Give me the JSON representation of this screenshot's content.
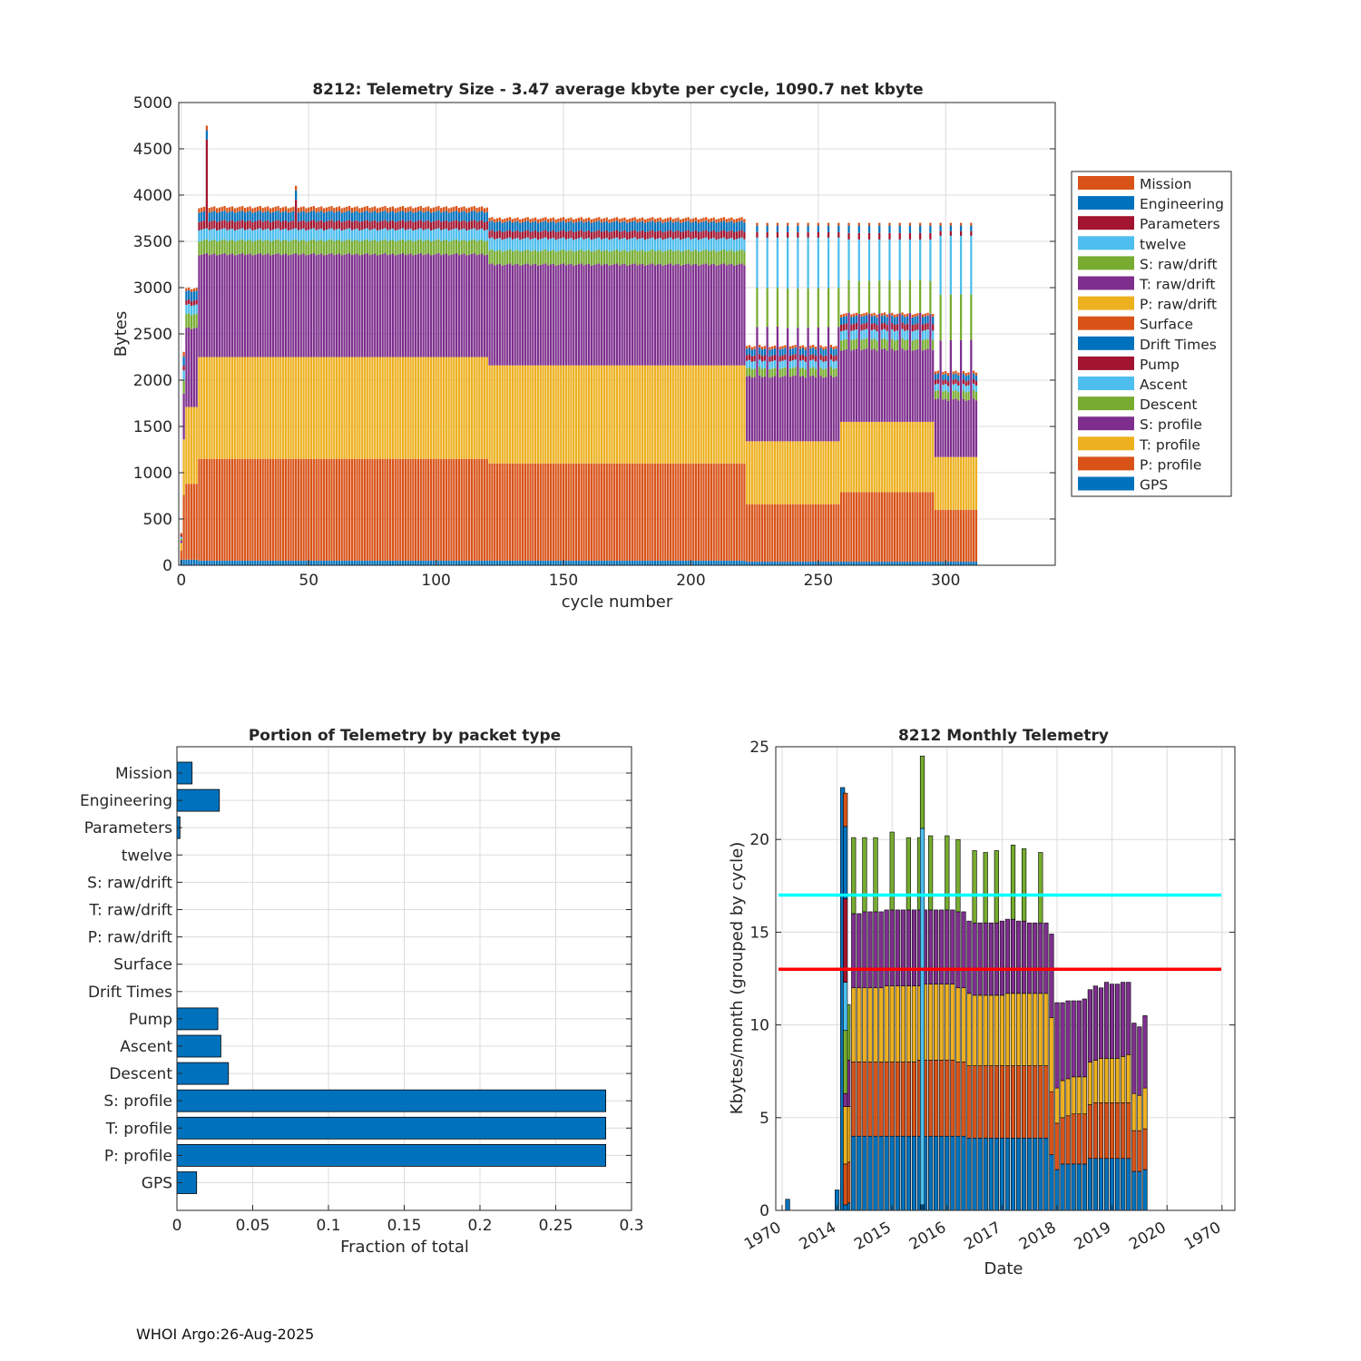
{
  "footer": "WHOI Argo:26-Aug-2025",
  "colors": {
    "blue": "#0072BD",
    "orange": "#D95319",
    "yellow": "#EDB120",
    "purple": "#7E2F8E",
    "green": "#77AC30",
    "cyan": "#4DBEEE",
    "red": "#A2142F",
    "line_cyan": "#00FFFF",
    "line_red": "#FF0000",
    "grid": "#dcdcdc"
  },
  "chart_data": [
    {
      "id": "telemetry-size",
      "type": "bar",
      "stacked": true,
      "title": "8212: Telemetry Size - 3.47 average kbyte per cycle, 1090.7 net kbyte",
      "xlabel": "cycle number",
      "ylabel": "Bytes",
      "xlim": [
        -1,
        343
      ],
      "ylim": [
        0,
        5000
      ],
      "xticks": [
        0,
        50,
        100,
        150,
        200,
        250,
        300
      ],
      "yticks": [
        0,
        500,
        1000,
        1500,
        2000,
        2500,
        3000,
        3500,
        4000,
        4500,
        5000
      ],
      "legend": [
        "Mission",
        "Engineering",
        "Parameters",
        "twelve",
        "S: raw/drift",
        "T: raw/drift",
        "P: raw/drift",
        "Surface",
        "Drift Times",
        "Pump",
        "Ascent",
        "Descent",
        "S: profile",
        "T: profile",
        "P: profile",
        "GPS"
      ],
      "legend_colors": [
        "orange",
        "blue",
        "red",
        "cyan",
        "green",
        "purple",
        "yellow",
        "orange",
        "blue",
        "red",
        "cyan",
        "green",
        "purple",
        "yellow",
        "orange",
        "blue"
      ],
      "legend_position": "outside-right",
      "stack_order": [
        "GPS",
        "P: profile",
        "T: profile",
        "S: profile",
        "Descent",
        "Ascent",
        "Pump",
        "Engineering",
        "Mission"
      ],
      "stack_colors": [
        "blue",
        "orange",
        "yellow",
        "purple",
        "green",
        "cyan",
        "red",
        "blue",
        "orange"
      ],
      "regimes": [
        {
          "from": 0,
          "to": 0,
          "values": [
            60,
            100,
            80,
            40,
            20,
            20,
            20,
            0,
            20
          ]
        },
        {
          "from": 1,
          "to": 1,
          "values": [
            60,
            700,
            600,
            500,
            150,
            100,
            50,
            100,
            50
          ]
        },
        {
          "from": 2,
          "to": 6,
          "values": [
            60,
            820,
            830,
            850,
            150,
            100,
            50,
            100,
            30
          ]
        },
        {
          "from": 7,
          "to": 120,
          "values": [
            50,
            1100,
            1100,
            1110,
            150,
            120,
            90,
            100,
            50
          ]
        },
        {
          "from": 121,
          "to": 221,
          "values": [
            50,
            1050,
            1060,
            1090,
            150,
            130,
            80,
            100,
            40
          ]
        },
        {
          "from": 222,
          "to": 258,
          "values": [
            40,
            620,
            680,
            700,
            90,
            80,
            60,
            70,
            30
          ]
        },
        {
          "from": 259,
          "to": 295,
          "values": [
            40,
            750,
            760,
            780,
            110,
            100,
            70,
            80,
            30
          ]
        },
        {
          "from": 296,
          "to": 312,
          "values": [
            40,
            560,
            570,
            620,
            90,
            70,
            50,
            60,
            30
          ]
        }
      ],
      "spikes": [
        {
          "cycle": 10,
          "total": 4750
        },
        {
          "cycle": 45,
          "total": 4100
        }
      ],
      "tall_thin_bars": [
        226,
        230,
        234,
        238,
        242,
        246,
        250,
        254,
        258,
        262,
        266,
        270,
        274,
        278,
        282,
        286,
        290,
        294,
        298,
        302,
        306,
        310
      ],
      "tall_thin_total": 3700
    },
    {
      "id": "portion-by-packet",
      "type": "barh",
      "title": "Portion of Telemetry by packet type",
      "xlabel": "Fraction of total",
      "xlim": [
        0,
        0.3
      ],
      "xticks": [
        0,
        0.05,
        0.1,
        0.15,
        0.2,
        0.25,
        0.3
      ],
      "tick_labels": [
        "0",
        "0.05",
        "0.1",
        "0.15",
        "0.2",
        "0.25",
        "0.3"
      ],
      "categories": [
        "Mission",
        "Engineering",
        "Parameters",
        "twelve",
        "S: raw/drift",
        "T: raw/drift",
        "P: raw/drift",
        "Surface",
        "Drift Times",
        "Pump",
        "Ascent",
        "Descent",
        "S: profile",
        "T: profile",
        "P: profile",
        "GPS"
      ],
      "values": [
        0.01,
        0.028,
        0.002,
        0,
        0,
        0,
        0,
        0,
        0,
        0.027,
        0.029,
        0.034,
        0.283,
        0.283,
        0.283,
        0.013
      ]
    },
    {
      "id": "monthly-telemetry",
      "type": "bar",
      "stacked": true,
      "title": "8212 Monthly Telemetry",
      "xlabel": "Date",
      "ylabel": "Kbytes/month (grouped by cycle)",
      "ylim": [
        0,
        25
      ],
      "yticks": [
        0,
        5,
        10,
        15,
        20,
        25
      ],
      "xtick_labels": [
        "1970",
        "2014",
        "2015",
        "2016",
        "2017",
        "2018",
        "2019",
        "2020",
        "1970"
      ],
      "hlines": [
        {
          "y": 17,
          "color": "line_cyan"
        },
        {
          "y": 13,
          "color": "line_red"
        }
      ],
      "stack_colors": [
        "blue",
        "orange",
        "yellow",
        "purple",
        "green"
      ],
      "bars": [
        {
          "slot": 0.1,
          "values": [
            0.6,
            0,
            0,
            0,
            0
          ]
        },
        {
          "slot": 1.0,
          "values": [
            1.1,
            0,
            0,
            0,
            0
          ]
        },
        {
          "slot": 1.1,
          "values": [
            22.8,
            0,
            0,
            0,
            0
          ]
        },
        {
          "slot": 1.2,
          "values": [
            0.4,
            2.2,
            3.0,
            2.5,
            3.0
          ]
        },
        {
          "slot": 1.3,
          "values": [
            4.0,
            4.0,
            4.0,
            4.0,
            4.1
          ]
        },
        {
          "slot": 1.4,
          "values": [
            4.0,
            4.0,
            4.0,
            4.0,
            0
          ]
        },
        {
          "slot": 1.5,
          "values": [
            4.0,
            4.0,
            4.0,
            4.1,
            4.0
          ]
        },
        {
          "slot": 1.6,
          "values": [
            4.0,
            4.0,
            4.0,
            4.1,
            0
          ]
        },
        {
          "slot": 1.7,
          "values": [
            4.0,
            4.0,
            4.0,
            4.1,
            4.0
          ]
        },
        {
          "slot": 1.8,
          "values": [
            4.0,
            4.0,
            4.0,
            4.1,
            0
          ]
        },
        {
          "slot": 1.9,
          "values": [
            4.0,
            4.0,
            4.1,
            4.1,
            0
          ]
        },
        {
          "slot": 2.0,
          "values": [
            4.0,
            4.0,
            4.1,
            4.1,
            4.2
          ]
        },
        {
          "slot": 2.1,
          "values": [
            4.0,
            4.0,
            4.1,
            4.1,
            0
          ]
        },
        {
          "slot": 2.2,
          "values": [
            4.0,
            4.0,
            4.1,
            4.1,
            0
          ]
        },
        {
          "slot": 2.3,
          "values": [
            4.0,
            4.0,
            4.1,
            4.1,
            3.9
          ]
        },
        {
          "slot": 2.4,
          "values": [
            4.0,
            4.0,
            4.1,
            4.1,
            0
          ]
        },
        {
          "slot": 2.5,
          "values": [
            4.0,
            4.1,
            4.0,
            4.1,
            3.9
          ]
        },
        {
          "slot": 2.6,
          "values": [
            4.0,
            4.1,
            4.1,
            4.0,
            0
          ]
        },
        {
          "slot": 2.7,
          "values": [
            4.0,
            4.1,
            4.1,
            4.0,
            4.0
          ]
        },
        {
          "slot": 2.8,
          "values": [
            4.0,
            4.1,
            4.1,
            4.0,
            0
          ]
        },
        {
          "slot": 2.9,
          "values": [
            4.0,
            4.1,
            4.1,
            4.0,
            0
          ]
        },
        {
          "slot": 3.0,
          "values": [
            4.0,
            4.1,
            4.1,
            4.0,
            4.0
          ]
        },
        {
          "slot": 3.1,
          "values": [
            4.0,
            4.1,
            4.1,
            4.0,
            0
          ]
        },
        {
          "slot": 3.2,
          "values": [
            4.0,
            4.0,
            4.0,
            4.1,
            3.9
          ]
        },
        {
          "slot": 3.3,
          "values": [
            4.0,
            4.0,
            4.0,
            4.1,
            0
          ]
        },
        {
          "slot": 3.4,
          "values": [
            3.9,
            3.9,
            3.9,
            3.9,
            0
          ]
        },
        {
          "slot": 3.5,
          "values": [
            3.9,
            3.9,
            3.8,
            3.9,
            3.9
          ]
        },
        {
          "slot": 3.6,
          "values": [
            3.9,
            3.9,
            3.8,
            3.9,
            0
          ]
        },
        {
          "slot": 3.7,
          "values": [
            3.9,
            3.9,
            3.8,
            3.9,
            3.8
          ]
        },
        {
          "slot": 3.8,
          "values": [
            3.9,
            3.9,
            3.8,
            3.9,
            0
          ]
        },
        {
          "slot": 3.9,
          "values": [
            3.9,
            3.9,
            3.8,
            3.9,
            3.9
          ]
        },
        {
          "slot": 4.0,
          "values": [
            3.9,
            3.9,
            3.8,
            4.0,
            0
          ]
        },
        {
          "slot": 4.1,
          "values": [
            3.9,
            3.9,
            3.9,
            4.0,
            0
          ]
        },
        {
          "slot": 4.2,
          "values": [
            3.9,
            3.9,
            3.9,
            4.0,
            4.0
          ]
        },
        {
          "slot": 4.3,
          "values": [
            3.9,
            3.9,
            3.9,
            3.9,
            0
          ]
        },
        {
          "slot": 4.4,
          "values": [
            3.9,
            3.9,
            3.9,
            3.9,
            3.9
          ]
        },
        {
          "slot": 4.5,
          "values": [
            3.9,
            3.9,
            3.9,
            3.8,
            0
          ]
        },
        {
          "slot": 4.6,
          "values": [
            3.9,
            3.9,
            3.9,
            3.8,
            0
          ]
        },
        {
          "slot": 4.7,
          "values": [
            3.9,
            3.9,
            3.9,
            3.8,
            3.8
          ]
        },
        {
          "slot": 4.8,
          "values": [
            3.9,
            3.9,
            3.9,
            3.8,
            0
          ]
        },
        {
          "slot": 4.9,
          "values": [
            3.0,
            3.4,
            4.0,
            4.5,
            0
          ]
        },
        {
          "slot": 5.0,
          "values": [
            2.2,
            2.5,
            1.9,
            4.6,
            0
          ]
        },
        {
          "slot": 5.1,
          "values": [
            2.5,
            2.5,
            2.0,
            4.2,
            0
          ]
        },
        {
          "slot": 5.2,
          "values": [
            2.5,
            2.6,
            2.0,
            4.2,
            0
          ]
        },
        {
          "slot": 5.3,
          "values": [
            2.5,
            2.7,
            2.0,
            4.1,
            0
          ]
        },
        {
          "slot": 5.4,
          "values": [
            2.5,
            2.7,
            2.0,
            4.1,
            0
          ]
        },
        {
          "slot": 5.5,
          "values": [
            2.5,
            2.7,
            2.0,
            4.2,
            0
          ]
        },
        {
          "slot": 5.6,
          "values": [
            2.8,
            2.9,
            2.3,
            3.9,
            0
          ]
        },
        {
          "slot": 5.7,
          "values": [
            2.8,
            3.0,
            2.3,
            4.0,
            0
          ]
        },
        {
          "slot": 5.8,
          "values": [
            2.8,
            3.0,
            2.4,
            3.8,
            0
          ]
        },
        {
          "slot": 5.9,
          "values": [
            2.8,
            3.0,
            2.4,
            4.1,
            0
          ]
        },
        {
          "slot": 6.0,
          "values": [
            2.8,
            3.0,
            2.4,
            4.0,
            0
          ]
        },
        {
          "slot": 6.1,
          "values": [
            2.8,
            3.0,
            2.4,
            4.0,
            0
          ]
        },
        {
          "slot": 6.2,
          "values": [
            2.8,
            3.0,
            2.5,
            4.0,
            0
          ]
        },
        {
          "slot": 6.3,
          "values": [
            2.8,
            3.0,
            2.6,
            3.9,
            0
          ]
        },
        {
          "slot": 6.4,
          "values": [
            2.1,
            2.2,
            2.0,
            3.8,
            0
          ]
        },
        {
          "slot": 6.5,
          "values": [
            2.1,
            2.2,
            1.9,
            3.7,
            0
          ]
        },
        {
          "slot": 6.6,
          "values": [
            2.2,
            2.2,
            2.2,
            3.9,
            0
          ]
        }
      ],
      "spike_overlays": [
        {
          "slot": 1.2,
          "values": [
            0.3,
            2.2,
            3.1,
            0.7,
            3.4,
            2.6,
            4.5,
            3.9,
            1.8
          ]
        },
        {
          "slot": 2.6,
          "values": [
            0.1,
            0.1,
            0.1,
            20.3,
            3.9
          ]
        }
      ]
    }
  ]
}
